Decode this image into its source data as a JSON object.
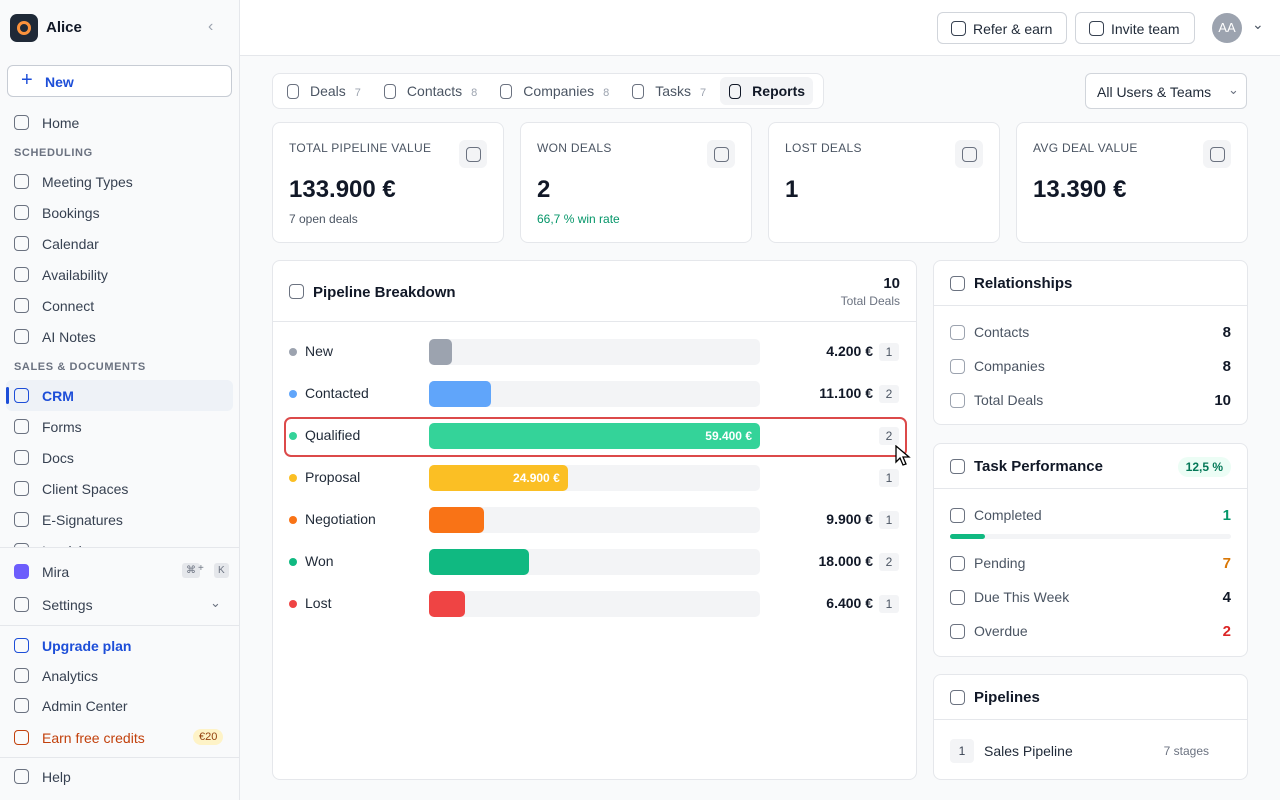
{
  "sidebar": {
    "workspace": "Alice",
    "new_button": "New",
    "top": [
      {
        "label": "Home"
      }
    ],
    "sections": [
      {
        "heading": "SCHEDULING",
        "items": [
          {
            "label": "Meeting Types"
          },
          {
            "label": "Bookings"
          },
          {
            "label": "Calendar"
          },
          {
            "label": "Availability"
          },
          {
            "label": "Connect"
          },
          {
            "label": "AI Notes"
          }
        ]
      },
      {
        "heading": "SALES & DOCUMENTS",
        "items": [
          {
            "label": "CRM",
            "active": true
          },
          {
            "label": "Forms"
          },
          {
            "label": "Docs"
          },
          {
            "label": "Client Spaces"
          },
          {
            "label": "E-Signatures"
          },
          {
            "label": "Invoicing"
          }
        ]
      }
    ],
    "mira": "Mira",
    "shortcut": [
      "⌘",
      "+",
      "K"
    ],
    "settings": "Settings",
    "upgrade": "Upgrade plan",
    "analytics": "Analytics",
    "admin": "Admin Center",
    "earn": "Earn free credits",
    "earn_badge": "€20",
    "help": "Help"
  },
  "header": {
    "refer": "Refer & earn",
    "invite": "Invite team",
    "avatar": "AA"
  },
  "tabs": [
    {
      "label": "Deals",
      "count": 7
    },
    {
      "label": "Contacts",
      "count": 8
    },
    {
      "label": "Companies",
      "count": 8
    },
    {
      "label": "Tasks",
      "count": 7
    },
    {
      "label": "Reports",
      "active": true
    }
  ],
  "filter": "All Users & Teams",
  "stats": [
    {
      "title": "TOTAL PIPELINE VALUE",
      "value": "133.900 €",
      "note": "7 open deals"
    },
    {
      "title": "WON DEALS",
      "value": "2",
      "note": "66,7 % win rate",
      "note_color": "#059669"
    },
    {
      "title": "LOST DEALS",
      "value": "1"
    },
    {
      "title": "AVG DEAL VALUE",
      "value": "13.390 €"
    }
  ],
  "pipeline": {
    "title": "Pipeline Breakdown",
    "total": 10,
    "total_label": "Total Deals",
    "stages": [
      {
        "name": "New",
        "color": "#9ca3af",
        "value": 4200,
        "value_label": "4.200 €",
        "count": 1
      },
      {
        "name": "Contacted",
        "color": "#60a5fa",
        "value": 11100,
        "value_label": "11.100 €",
        "count": 2
      },
      {
        "name": "Qualified",
        "color": "#34d399",
        "value": 59400,
        "value_label": "59.400 €",
        "count": 2
      },
      {
        "name": "Proposal",
        "color": "#fbbf24",
        "value": 24900,
        "value_label": "24.900 €",
        "count": 1
      },
      {
        "name": "Negotiation",
        "color": "#f97316",
        "value": 9900,
        "value_label": "9.900 €",
        "count": 1
      },
      {
        "name": "Won",
        "color": "#10b981",
        "value": 18000,
        "value_label": "18.000 €",
        "count": 2
      },
      {
        "name": "Lost",
        "color": "#ef4444",
        "value": 6400,
        "value_label": "6.400 €",
        "count": 1
      }
    ]
  },
  "relationships": {
    "title": "Relationships",
    "rows": [
      {
        "label": "Contacts",
        "value": 8
      },
      {
        "label": "Companies",
        "value": 8
      },
      {
        "label": "Total Deals",
        "value": 10
      }
    ]
  },
  "tasks": {
    "title": "Task Performance",
    "completion": {
      "value": 12.5,
      "label": "12,5 %"
    },
    "rows": [
      {
        "label": "Completed",
        "value": 1,
        "color": "#059669"
      },
      {
        "label": "Pending",
        "value": 7,
        "color": "#d97706"
      },
      {
        "label": "Due This Week",
        "value": 4,
        "color": "#111827"
      },
      {
        "label": "Overdue",
        "value": 2,
        "color": "#dc2626"
      }
    ]
  },
  "pipelines": {
    "title": "Pipelines",
    "items": [
      {
        "index": 1,
        "name": "Sales Pipeline",
        "stages": "7 stages"
      }
    ]
  }
}
